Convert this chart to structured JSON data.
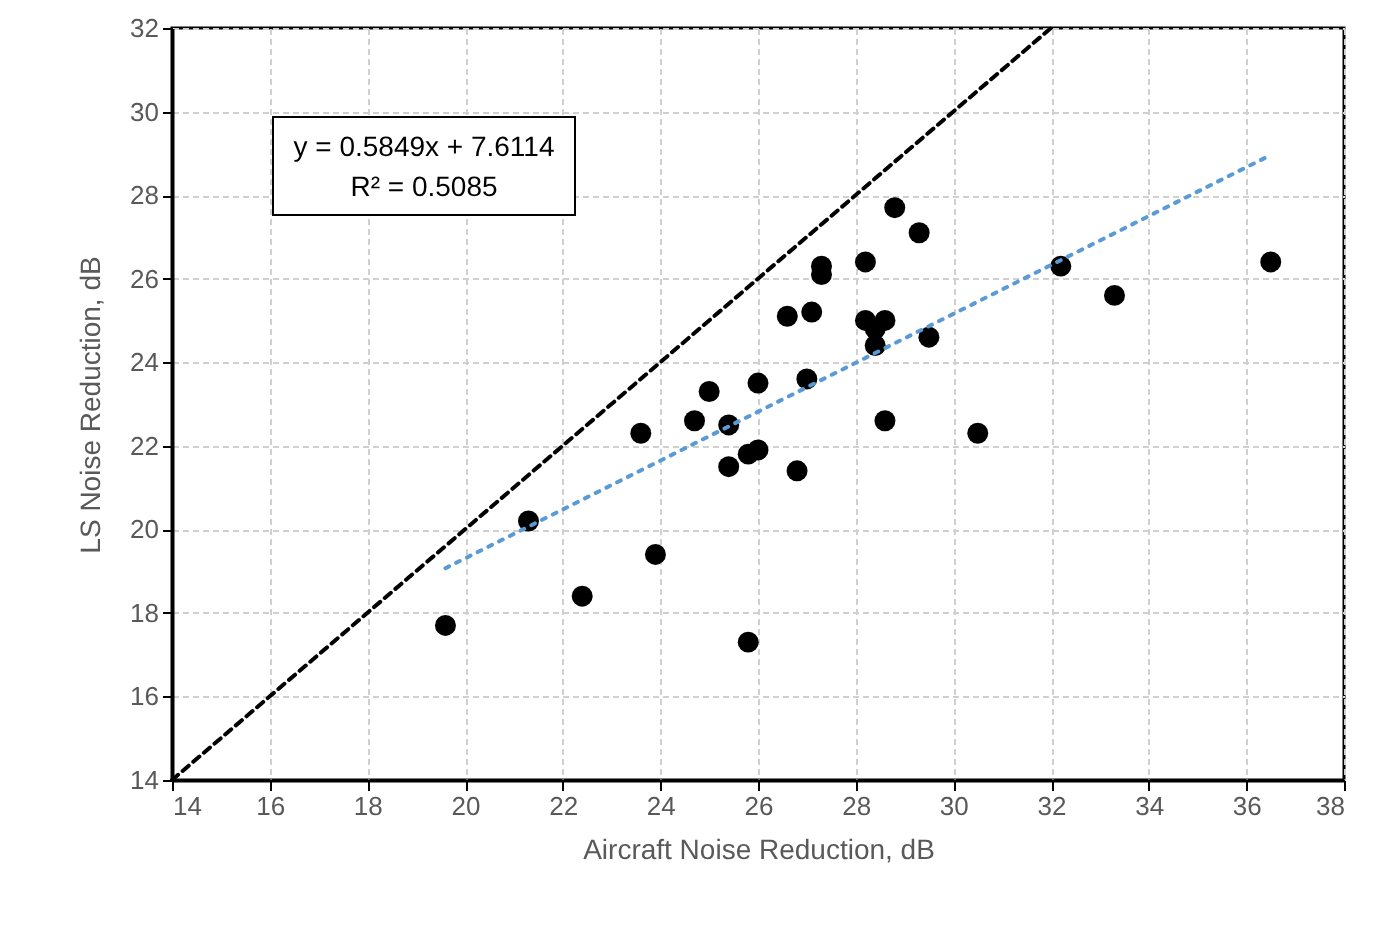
{
  "chart_data": {
    "type": "scatter",
    "xlabel": "Aircraft Noise Reduction, dB",
    "ylabel": "LS Noise Reduction, dB",
    "xlim": [
      14,
      38
    ],
    "xticks": [
      14,
      16,
      18,
      20,
      22,
      24,
      26,
      28,
      30,
      32,
      34,
      36,
      38
    ],
    "ylim": [
      14,
      32
    ],
    "yticks": [
      14,
      16,
      18,
      20,
      22,
      24,
      26,
      28,
      30,
      32
    ],
    "grid": true,
    "annotations": [
      "y = 0.5849x + 7.6114",
      "R² = 0.5085"
    ],
    "series": [
      {
        "marker": "circle",
        "color": "#000000",
        "x": [
          19.6,
          21.3,
          22.4,
          23.6,
          23.9,
          24.7,
          25.0,
          25.4,
          25.4,
          25.8,
          25.8,
          26.0,
          26.0,
          26.6,
          26.8,
          27.0,
          27.1,
          27.3,
          27.3,
          28.2,
          28.2,
          28.4,
          28.4,
          28.6,
          28.6,
          28.8,
          29.3,
          29.5,
          30.5,
          32.2,
          33.3,
          36.5
        ],
        "values": [
          17.7,
          20.2,
          18.4,
          22.3,
          19.4,
          22.6,
          23.3,
          22.5,
          21.5,
          21.8,
          17.3,
          23.5,
          21.9,
          25.1,
          21.4,
          23.6,
          25.2,
          26.3,
          26.1,
          26.4,
          25.0,
          24.4,
          24.8,
          25.0,
          22.6,
          27.7,
          27.1,
          24.6,
          22.3,
          26.3,
          25.6,
          26.4
        ]
      },
      {
        "type": "line",
        "line_style": "dotted",
        "color": "#5b9bd5",
        "x": [
          19.6,
          36.5
        ],
        "values": [
          19.07,
          28.96
        ]
      },
      {
        "type": "line",
        "line_style": "dashed",
        "color": "#000000",
        "x": [
          14,
          32
        ],
        "values": [
          14,
          32
        ]
      }
    ]
  }
}
